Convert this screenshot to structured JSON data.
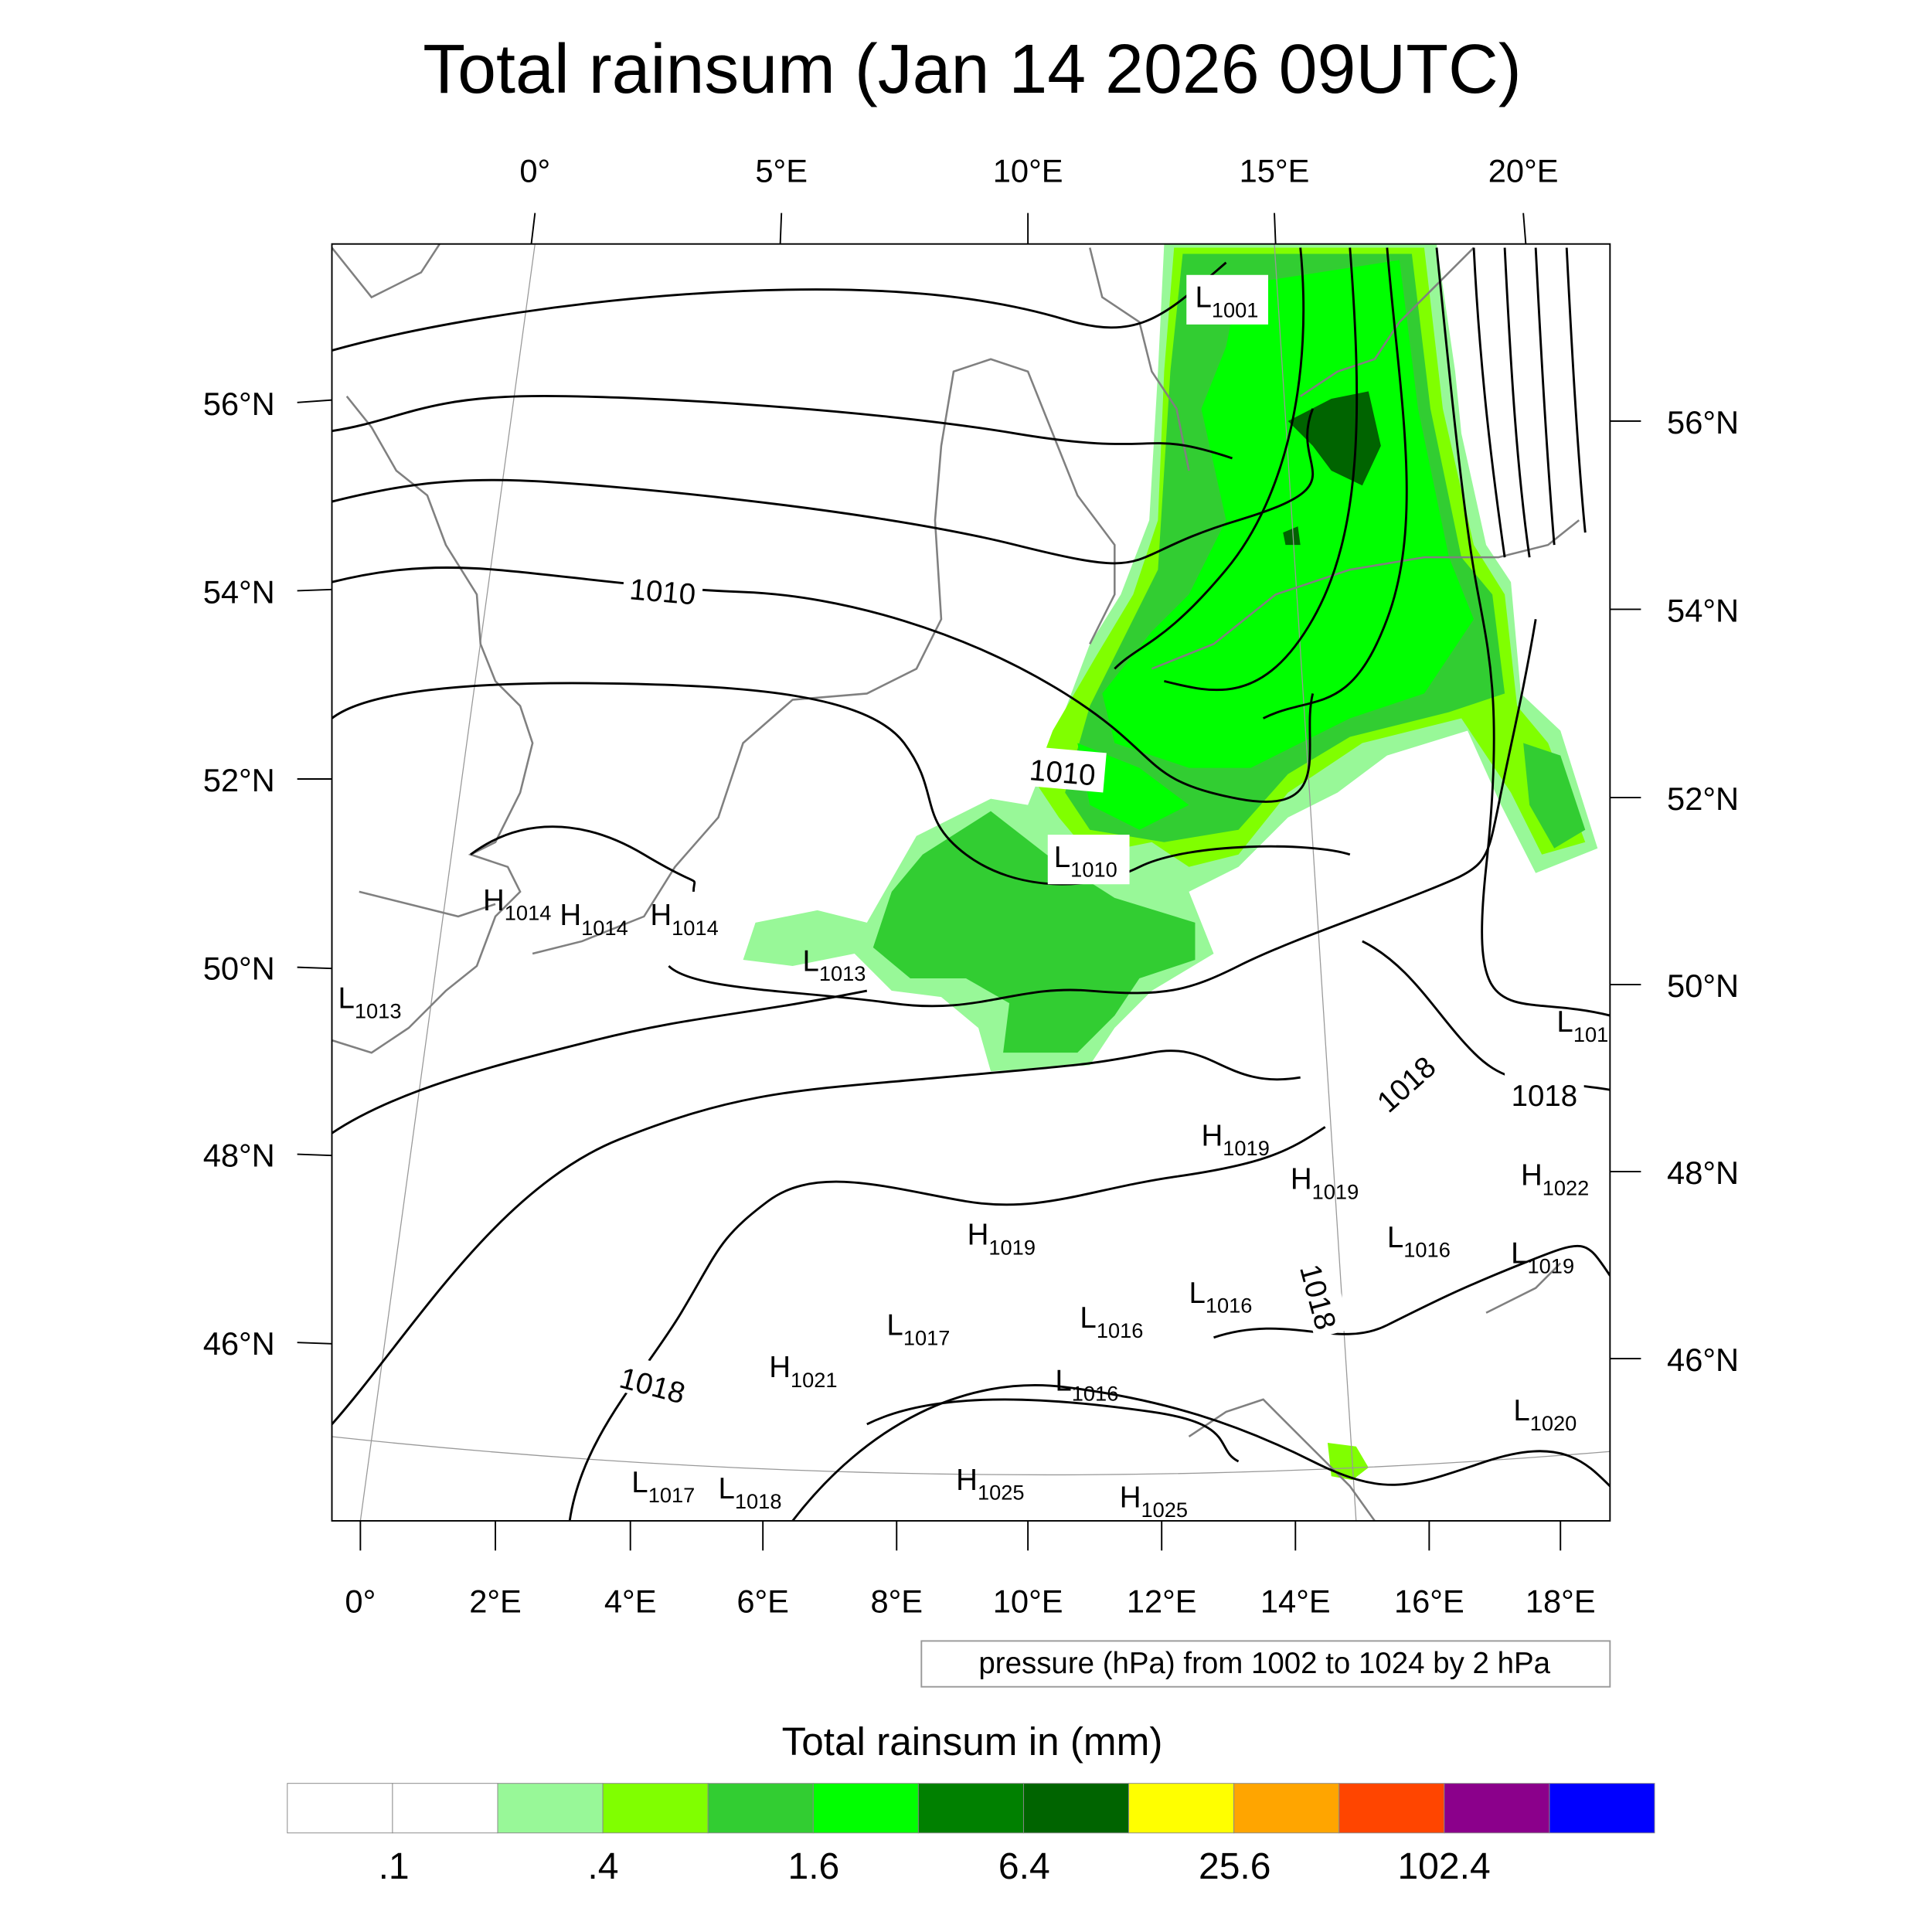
{
  "title": "Total rainsum (Jan 14 2026 09UTC)",
  "axes": {
    "top": [
      "0°",
      "5°E",
      "10°E",
      "15°E",
      "20°E"
    ],
    "bottom": [
      "0°",
      "2°E",
      "4°E",
      "6°E",
      "8°E",
      "10°E",
      "12°E",
      "14°E",
      "16°E",
      "18°E"
    ],
    "left": [
      "56°N",
      "54°N",
      "52°N",
      "50°N",
      "48°N",
      "46°N"
    ],
    "right": [
      "56°N",
      "54°N",
      "52°N",
      "50°N",
      "48°N",
      "46°N"
    ]
  },
  "pressure_centers": [
    {
      "type": "L",
      "value": "1001"
    },
    {
      "type": "L",
      "value": "1010"
    },
    {
      "type": "L",
      "value": "1013"
    },
    {
      "type": "L",
      "value": "1013"
    },
    {
      "type": "H",
      "value": "1014"
    },
    {
      "type": "H",
      "value": "1014"
    },
    {
      "type": "H",
      "value": "1014"
    },
    {
      "type": "L",
      "value": "101"
    },
    {
      "type": "H",
      "value": "1019"
    },
    {
      "type": "H",
      "value": "1019"
    },
    {
      "type": "H",
      "value": "1022"
    },
    {
      "type": "L",
      "value": "1016"
    },
    {
      "type": "L",
      "value": "1019"
    },
    {
      "type": "L",
      "value": "1016"
    },
    {
      "type": "L",
      "value": "1016"
    },
    {
      "type": "L",
      "value": "1017"
    },
    {
      "type": "H",
      "value": "1019"
    },
    {
      "type": "H",
      "value": "1021"
    },
    {
      "type": "L",
      "value": "1016"
    },
    {
      "type": "L",
      "value": "1020"
    },
    {
      "type": "L",
      "value": "1017"
    },
    {
      "type": "L",
      "value": "1018"
    },
    {
      "type": "H",
      "value": "1025"
    },
    {
      "type": "H",
      "value": "1025"
    }
  ],
  "contour_labels": [
    "1010",
    "1010",
    "1018",
    "1018",
    "1018",
    "1018"
  ],
  "contour_info": "pressure (hPa) from 1002 to 1024 by 2 hPa",
  "colorbar": {
    "title": "Total rainsum in (mm)",
    "colors": [
      "#ffffff",
      "#ffffff",
      "#98f898",
      "#80ff00",
      "#32cd32",
      "#00ff00",
      "#008000",
      "#006400",
      "#ffff00",
      "#ffa500",
      "#ff4500",
      "#8b008b",
      "#0000ff"
    ],
    "labels": [
      ".1",
      ".4",
      "1.6",
      "6.4",
      "25.6",
      "102.4"
    ]
  }
}
